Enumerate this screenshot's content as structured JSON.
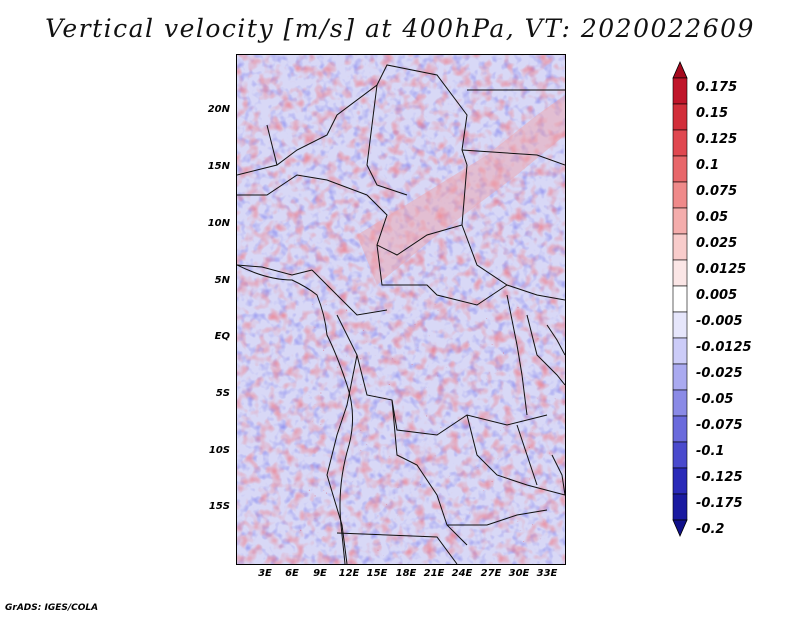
{
  "title": "Vertical velocity [m/s] at 400hPa, VT: 2020022609",
  "credit": "GrADS: IGES/COLA",
  "map": {
    "lat_labels": [
      "20N",
      "15N",
      "10N",
      "5N",
      "EQ",
      "5S",
      "10S",
      "15S"
    ],
    "lon_labels": [
      "3E",
      "6E",
      "9E",
      "12E",
      "15E",
      "18E",
      "21E",
      "24E",
      "27E",
      "30E",
      "33E"
    ]
  },
  "colorbar": {
    "labels": [
      "0.175",
      "0.15",
      "0.125",
      "0.1",
      "0.075",
      "0.05",
      "0.025",
      "0.0125",
      "0.005",
      "-0.005",
      "-0.0125",
      "-0.025",
      "-0.05",
      "-0.075",
      "-0.1",
      "-0.125",
      "-0.175",
      "-0.2"
    ],
    "colors": [
      "#a50a1e",
      "#c0152a",
      "#d22e3a",
      "#e04850",
      "#e8676a",
      "#ef8a8a",
      "#f4adac",
      "#f8cccb",
      "#fbe6e6",
      "#ffffff",
      "#e6e6fb",
      "#ccccf8",
      "#aaaaf0",
      "#8a8ae6",
      "#6a6adc",
      "#4a4acd",
      "#2a2ab8",
      "#1a1aa0",
      "#10108a"
    ]
  }
}
